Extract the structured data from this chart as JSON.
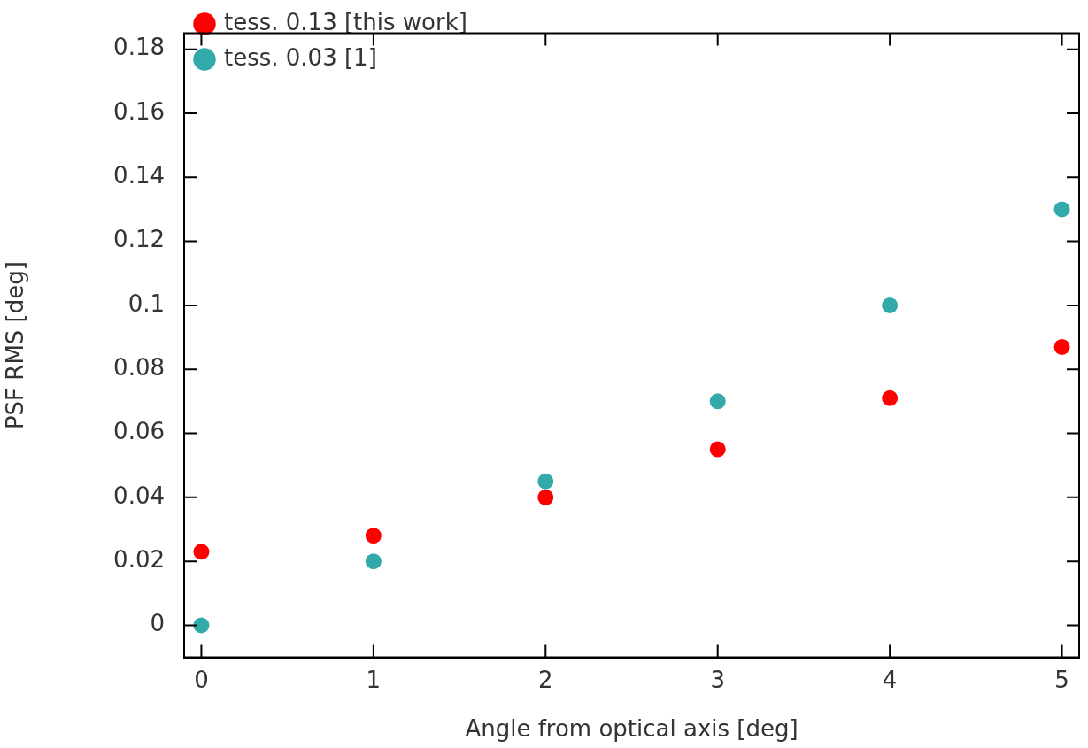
{
  "chart_data": {
    "type": "scatter",
    "xlabel": "Angle from optical axis [deg]",
    "ylabel": "PSF RMS [deg]",
    "x": [
      0,
      1,
      2,
      3,
      4,
      5
    ],
    "series": [
      {
        "name": "tess. 0.13 [this work]",
        "color": "#ff0000",
        "values": [
          0.023,
          0.028,
          0.04,
          0.055,
          0.071,
          0.087
        ]
      },
      {
        "name": "tess. 0.03 [1]",
        "color": "#33aaaa",
        "values": [
          0.0,
          0.02,
          0.045,
          0.07,
          0.1,
          0.13
        ]
      }
    ],
    "xlim": [
      -0.1,
      5.1
    ],
    "xticks": [
      0,
      1,
      2,
      3,
      4,
      5
    ],
    "ylim": [
      -0.01,
      0.185
    ],
    "yticks": [
      0,
      0.02,
      0.04,
      0.06,
      0.08,
      0.1,
      0.12,
      0.14,
      0.16,
      0.18
    ],
    "legend": "top left",
    "marker": "circle"
  }
}
